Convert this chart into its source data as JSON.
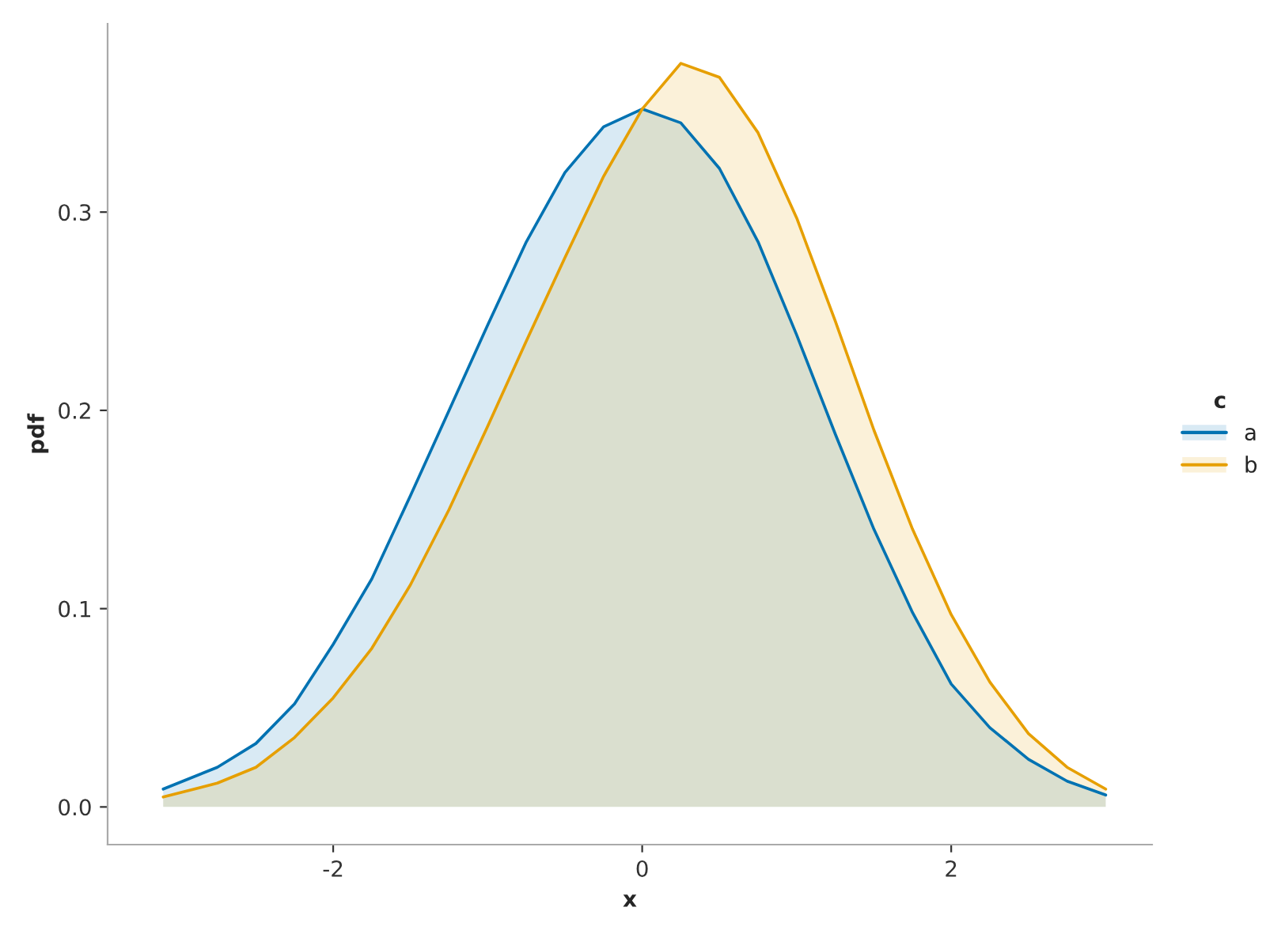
{
  "chart_data": {
    "type": "area",
    "xlabel": "x",
    "ylabel": "pdf",
    "legend_title": "c",
    "legend": "right",
    "xlim": [
      -3.46,
      3.3
    ],
    "ylim": [
      -0.019,
      0.395
    ],
    "xticks": [
      -2,
      0,
      2
    ],
    "yticks": [
      {
        "value": 0,
        "label": "0.0"
      },
      0.1,
      0.2,
      0.3
    ],
    "grid": false,
    "x": [
      -3.1,
      -2.75,
      -2.5,
      -2.25,
      -2,
      -1.75,
      -1.5,
      -1.25,
      -1,
      -0.75,
      -0.5,
      -0.25,
      0,
      0.25,
      0.5,
      0.75,
      1,
      1.25,
      1.5,
      1.75,
      2,
      2.25,
      2.5,
      2.75,
      3.0
    ],
    "series": [
      {
        "name": "a",
        "color": "#0072b2",
        "values": [
          0.009,
          0.02,
          0.032,
          0.052,
          0.082,
          0.115,
          0.157,
          0.2,
          0.243,
          0.285,
          0.32,
          0.343,
          0.352,
          0.345,
          0.322,
          0.285,
          0.238,
          0.188,
          0.14,
          0.098,
          0.062,
          0.04,
          0.024,
          0.013,
          0.006
        ]
      },
      {
        "name": "b",
        "color": "#e69f00",
        "values": [
          0.005,
          0.012,
          0.02,
          0.035,
          0.055,
          0.08,
          0.112,
          0.15,
          0.192,
          0.235,
          0.277,
          0.318,
          0.352,
          0.375,
          0.368,
          0.34,
          0.297,
          0.245,
          0.19,
          0.14,
          0.097,
          0.063,
          0.037,
          0.02,
          0.009
        ]
      }
    ]
  }
}
